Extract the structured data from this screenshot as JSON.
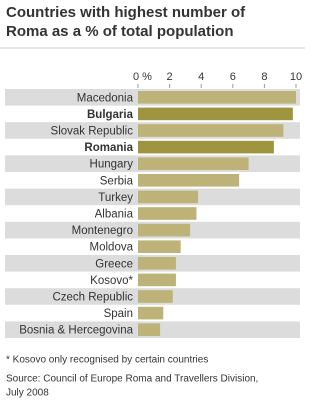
{
  "chart_data": {
    "type": "bar",
    "orientation": "horizontal",
    "title": [
      "Countries with highest number of",
      "Roma as a % of total population"
    ],
    "categories": [
      "Macedonia",
      "Bulgaria",
      "Slovak Republic",
      "Romania",
      "Hungary",
      "Serbia",
      "Turkey",
      "Albania",
      "Montenegro",
      "Moldova",
      "Greece",
      "Kosovo*",
      "Czech Republic",
      "Spain",
      "Bosnia & Hercegovina"
    ],
    "values": [
      10,
      9.8,
      9.2,
      8.6,
      7.0,
      6.4,
      3.8,
      3.7,
      3.3,
      2.7,
      2.4,
      2.4,
      2.2,
      1.6,
      1.4
    ],
    "color": "#bdb277",
    "highlight": [
      1,
      3
    ],
    "highlight_color": "#9f9440",
    "xlim": [
      0,
      10
    ],
    "xticks": [
      {
        "value": 0,
        "label": "0 %"
      },
      2,
      4,
      6,
      8,
      10
    ],
    "footnote": "* Kosovo only recognised by certain countries",
    "source": [
      "Source: Council of Europe Roma and Travellers Division,",
      "July 2008"
    ]
  }
}
